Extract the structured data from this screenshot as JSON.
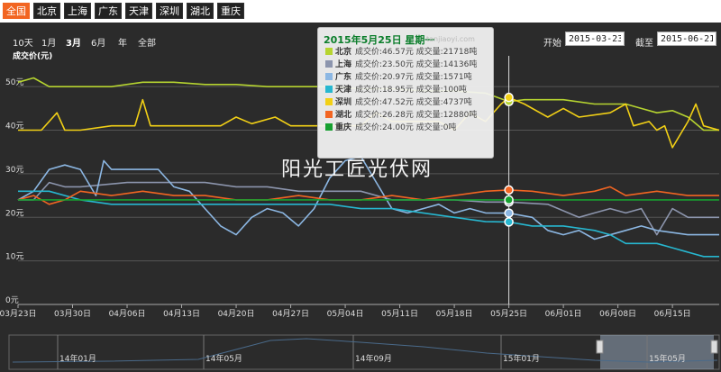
{
  "tabs": [
    {
      "label": "全国",
      "active": true
    },
    {
      "label": "北京",
      "active": false
    },
    {
      "label": "上海",
      "active": false
    },
    {
      "label": "广东",
      "active": false
    },
    {
      "label": "天津",
      "active": false
    },
    {
      "label": "深圳",
      "active": false
    },
    {
      "label": "湖北",
      "active": false
    },
    {
      "label": "重庆",
      "active": false
    }
  ],
  "range_buttons": [
    {
      "label": "10天",
      "selected": false
    },
    {
      "label": "1月",
      "selected": false
    },
    {
      "label": "3月",
      "selected": true
    },
    {
      "label": "6月",
      "selected": false
    },
    {
      "label": "年",
      "selected": false
    },
    {
      "label": "全部",
      "selected": false
    }
  ],
  "date_range": {
    "start_label": "开始",
    "start_value": "2015-03-23",
    "end_label": "截至",
    "end_value": "2015-06-21"
  },
  "tooltip": {
    "title": "2015年5月25日 星期一",
    "watermark": "tanjiaoyi.com",
    "rows": [
      {
        "city": "北京",
        "text": "成交价:46.57元 成交量:21718吨",
        "color": "#b6d430"
      },
      {
        "city": "上海",
        "text": "成交价:23.50元 成交量:14136吨",
        "color": "#8c95ad"
      },
      {
        "city": "广东",
        "text": "成交价:20.97元 成交量:1571吨",
        "color": "#8cb7e3"
      },
      {
        "city": "天津",
        "text": "成交价:18.95元 成交量:100吨",
        "color": "#27b7d0"
      },
      {
        "city": "深圳",
        "text": "成交价:47.52元 成交量:4737吨",
        "color": "#f2d016"
      },
      {
        "city": "湖北",
        "text": "成交价:26.28元 成交量:12880吨",
        "color": "#f26522"
      },
      {
        "city": "重庆",
        "text": "成交价:24.00元 成交量:0吨",
        "color": "#16a030"
      }
    ]
  },
  "watermark_text": "阳光工匠光伏网",
  "navigator_labels": [
    "14年01月",
    "14年05月",
    "14年09月",
    "15年01月",
    "15年05月"
  ],
  "chart_data": {
    "type": "line",
    "ylabel": "成交价(元)",
    "ylim": [
      0,
      55
    ],
    "yticks": [
      {
        "v": 0,
        "label": "0元"
      },
      {
        "v": 10,
        "label": "10元"
      },
      {
        "v": 20,
        "label": "20元"
      },
      {
        "v": 30,
        "label": "30元"
      },
      {
        "v": 40,
        "label": "40元"
      },
      {
        "v": 50,
        "label": "50元"
      }
    ],
    "xlim": [
      0,
      90
    ],
    "xticks": [
      {
        "d": 0,
        "label": "03月23日"
      },
      {
        "d": 7,
        "label": "03月30日"
      },
      {
        "d": 14,
        "label": "04月06日"
      },
      {
        "d": 21,
        "label": "04月13日"
      },
      {
        "d": 28,
        "label": "04月20日"
      },
      {
        "d": 35,
        "label": "04月27日"
      },
      {
        "d": 42,
        "label": "05月04日"
      },
      {
        "d": 49,
        "label": "05月11日"
      },
      {
        "d": 56,
        "label": "05月18日"
      },
      {
        "d": 63,
        "label": "05月25日"
      },
      {
        "d": 70,
        "label": "06月01日"
      },
      {
        "d": 77,
        "label": "06月08日"
      },
      {
        "d": 84,
        "label": "06月15日"
      }
    ],
    "crosshair_day": 63,
    "series": [
      {
        "name": "北京",
        "color": "#b6d430",
        "values": [
          [
            0,
            51
          ],
          [
            2,
            52
          ],
          [
            4,
            50
          ],
          [
            8,
            50
          ],
          [
            12,
            50
          ],
          [
            16,
            51
          ],
          [
            20,
            51
          ],
          [
            24,
            50.5
          ],
          [
            28,
            50.5
          ],
          [
            32,
            50
          ],
          [
            36,
            50
          ],
          [
            40,
            50
          ],
          [
            44,
            49.5
          ],
          [
            48,
            49.5
          ],
          [
            52,
            49
          ],
          [
            56,
            49
          ],
          [
            60,
            48.5
          ],
          [
            63,
            46.57
          ],
          [
            65,
            47
          ],
          [
            70,
            47
          ],
          [
            74,
            46
          ],
          [
            78,
            46
          ],
          [
            80,
            45
          ],
          [
            82,
            44
          ],
          [
            84,
            44.5
          ],
          [
            86,
            43
          ],
          [
            88,
            40
          ],
          [
            90,
            40
          ]
        ]
      },
      {
        "name": "深圳",
        "color": "#f2d016",
        "values": [
          [
            0,
            40
          ],
          [
            3,
            40
          ],
          [
            5,
            44
          ],
          [
            6,
            40
          ],
          [
            8,
            40
          ],
          [
            12,
            41
          ],
          [
            15,
            41
          ],
          [
            16,
            47
          ],
          [
            17,
            41
          ],
          [
            20,
            41
          ],
          [
            26,
            41
          ],
          [
            28,
            43
          ],
          [
            30,
            41.5
          ],
          [
            33,
            43
          ],
          [
            35,
            41
          ],
          [
            40,
            41
          ],
          [
            44,
            41
          ],
          [
            46,
            44
          ],
          [
            48,
            42
          ],
          [
            50,
            42
          ],
          [
            54,
            42
          ],
          [
            56,
            40
          ],
          [
            58,
            44
          ],
          [
            60,
            42
          ],
          [
            62,
            46
          ],
          [
            63,
            47.52
          ],
          [
            65,
            46
          ],
          [
            68,
            43
          ],
          [
            70,
            45
          ],
          [
            72,
            43
          ],
          [
            76,
            44
          ],
          [
            78,
            46
          ],
          [
            79,
            41
          ],
          [
            81,
            42
          ],
          [
            82,
            40
          ],
          [
            83,
            41
          ],
          [
            84,
            36
          ],
          [
            86,
            42
          ],
          [
            87,
            46
          ],
          [
            88,
            41
          ],
          [
            90,
            40
          ]
        ]
      },
      {
        "name": "上海",
        "color": "#8c95ad",
        "values": [
          [
            0,
            24
          ],
          [
            2,
            24
          ],
          [
            4,
            28
          ],
          [
            6,
            27
          ],
          [
            8,
            27
          ],
          [
            14,
            28
          ],
          [
            18,
            28
          ],
          [
            20,
            28
          ],
          [
            24,
            28
          ],
          [
            28,
            27
          ],
          [
            32,
            27
          ],
          [
            36,
            26
          ],
          [
            40,
            26
          ],
          [
            44,
            26
          ],
          [
            48,
            24
          ],
          [
            52,
            24
          ],
          [
            56,
            24
          ],
          [
            60,
            23.5
          ],
          [
            63,
            23.5
          ],
          [
            68,
            23
          ],
          [
            72,
            20
          ],
          [
            74,
            21
          ],
          [
            76,
            22
          ],
          [
            78,
            21
          ],
          [
            80,
            22
          ],
          [
            82,
            16
          ],
          [
            84,
            22
          ],
          [
            86,
            20
          ],
          [
            90,
            20
          ]
        ]
      },
      {
        "name": "广东",
        "color": "#8cb7e3",
        "values": [
          [
            0,
            24
          ],
          [
            2,
            26
          ],
          [
            4,
            31
          ],
          [
            6,
            32
          ],
          [
            8,
            31
          ],
          [
            10,
            25
          ],
          [
            11,
            33
          ],
          [
            12,
            31
          ],
          [
            14,
            31
          ],
          [
            18,
            31
          ],
          [
            20,
            27
          ],
          [
            22,
            26
          ],
          [
            24,
            22
          ],
          [
            26,
            18
          ],
          [
            28,
            16
          ],
          [
            30,
            20
          ],
          [
            32,
            22
          ],
          [
            34,
            21
          ],
          [
            36,
            18
          ],
          [
            38,
            22
          ],
          [
            40,
            29
          ],
          [
            42,
            33
          ],
          [
            44,
            34
          ],
          [
            45,
            31
          ],
          [
            46,
            28
          ],
          [
            48,
            22
          ],
          [
            50,
            21
          ],
          [
            52,
            22
          ],
          [
            54,
            23
          ],
          [
            56,
            21
          ],
          [
            58,
            22
          ],
          [
            60,
            21
          ],
          [
            63,
            20.97
          ],
          [
            66,
            20
          ],
          [
            68,
            17
          ],
          [
            70,
            16
          ],
          [
            72,
            17
          ],
          [
            74,
            15
          ],
          [
            78,
            17
          ],
          [
            80,
            18
          ],
          [
            82,
            17
          ],
          [
            84,
            16.5
          ],
          [
            86,
            16
          ],
          [
            90,
            16
          ]
        ]
      },
      {
        "name": "天津",
        "color": "#27b7d0",
        "values": [
          [
            0,
            26
          ],
          [
            4,
            26
          ],
          [
            8,
            24
          ],
          [
            12,
            23
          ],
          [
            16,
            23
          ],
          [
            20,
            23
          ],
          [
            24,
            23
          ],
          [
            28,
            23
          ],
          [
            32,
            23
          ],
          [
            36,
            23
          ],
          [
            40,
            23
          ],
          [
            44,
            22
          ],
          [
            48,
            22
          ],
          [
            52,
            21
          ],
          [
            56,
            20
          ],
          [
            60,
            19
          ],
          [
            63,
            18.95
          ],
          [
            66,
            18
          ],
          [
            70,
            18
          ],
          [
            74,
            17
          ],
          [
            76,
            16
          ],
          [
            78,
            14
          ],
          [
            82,
            14
          ],
          [
            84,
            13
          ],
          [
            86,
            12
          ],
          [
            88,
            11
          ],
          [
            90,
            11
          ]
        ]
      },
      {
        "name": "湖北",
        "color": "#f26522",
        "values": [
          [
            0,
            24
          ],
          [
            2,
            25
          ],
          [
            4,
            23
          ],
          [
            6,
            24
          ],
          [
            8,
            26
          ],
          [
            12,
            25
          ],
          [
            16,
            26
          ],
          [
            20,
            25
          ],
          [
            24,
            25
          ],
          [
            28,
            24
          ],
          [
            32,
            24
          ],
          [
            36,
            25
          ],
          [
            40,
            24
          ],
          [
            44,
            24
          ],
          [
            48,
            25
          ],
          [
            52,
            24
          ],
          [
            56,
            25
          ],
          [
            60,
            26
          ],
          [
            63,
            26.28
          ],
          [
            66,
            26
          ],
          [
            70,
            25
          ],
          [
            74,
            26
          ],
          [
            76,
            27
          ],
          [
            78,
            25
          ],
          [
            82,
            26
          ],
          [
            86,
            25
          ],
          [
            90,
            25
          ]
        ]
      },
      {
        "name": "重庆",
        "color": "#16a030",
        "values": [
          [
            0,
            24
          ],
          [
            10,
            24
          ],
          [
            20,
            24
          ],
          [
            30,
            24
          ],
          [
            40,
            24
          ],
          [
            50,
            24
          ],
          [
            60,
            24
          ],
          [
            63,
            24
          ],
          [
            70,
            24
          ],
          [
            80,
            24
          ],
          [
            90,
            24
          ]
        ]
      }
    ]
  }
}
